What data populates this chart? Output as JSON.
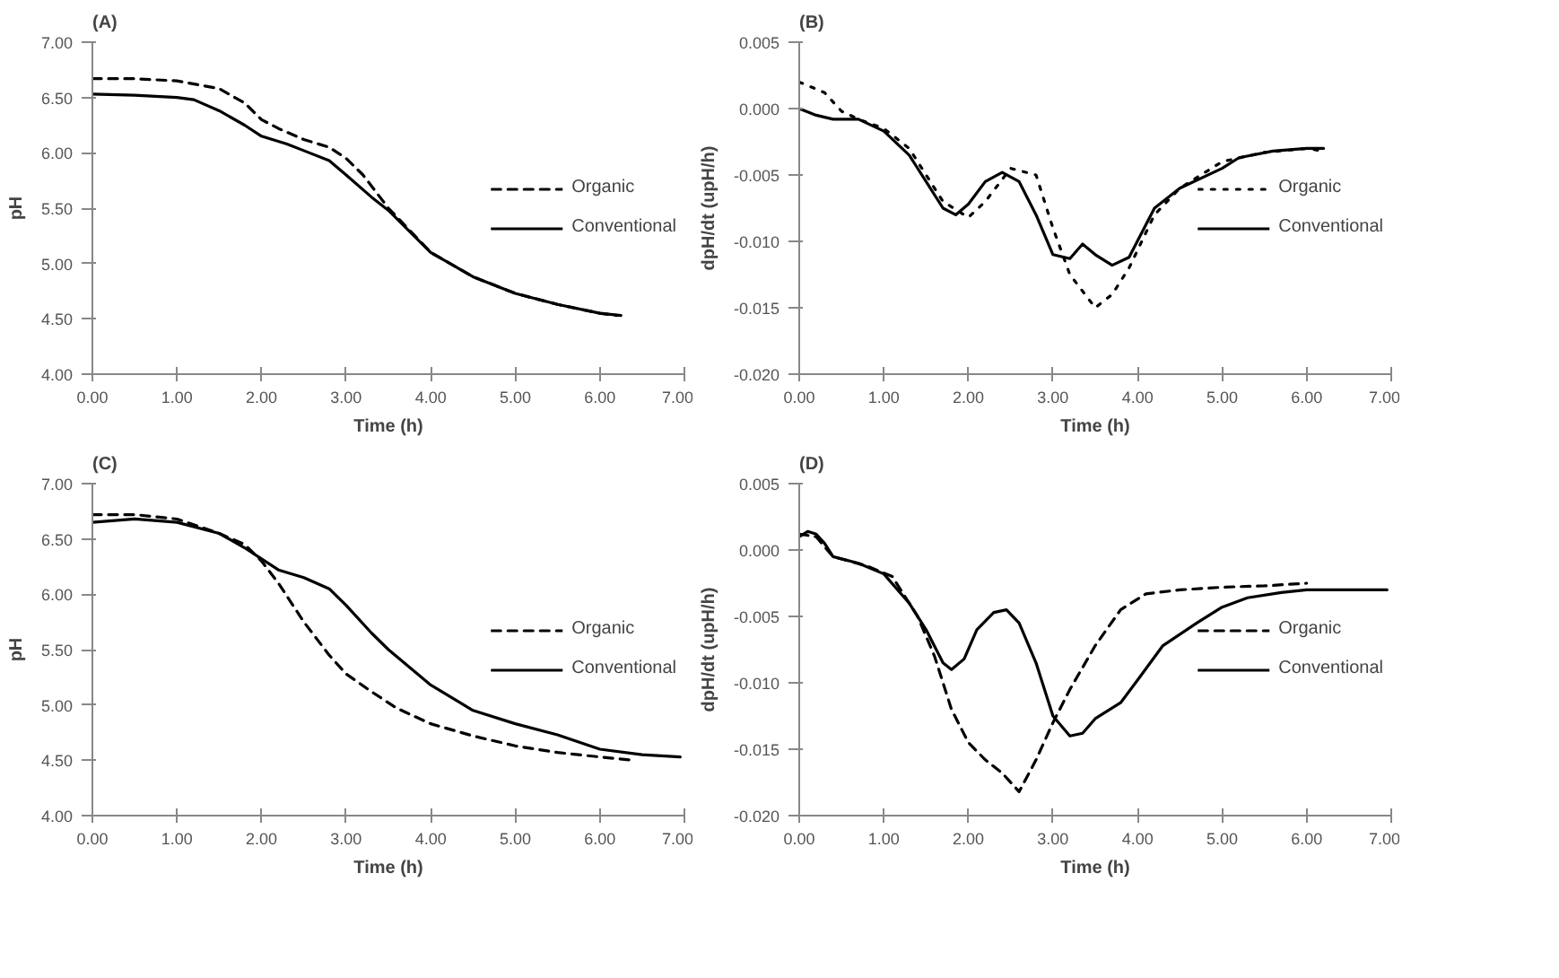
{
  "chart_data": [
    {
      "type": "line",
      "title": "(A)",
      "xlabel": "Time (h)",
      "ylabel": "pH",
      "legend": "right",
      "grid": false,
      "marker": "none",
      "xlim": [
        0,
        7
      ],
      "ylim": [
        4,
        7
      ],
      "xticks": [
        {
          "value": 0,
          "label": "0.00"
        },
        {
          "value": 1,
          "label": "1.00"
        },
        {
          "value": 2,
          "label": "2.00"
        },
        {
          "value": 3,
          "label": "3.00"
        },
        {
          "value": 4,
          "label": "4.00"
        },
        {
          "value": 5,
          "label": "5.00"
        },
        {
          "value": 6,
          "label": "6.00"
        },
        {
          "value": 7,
          "label": "7.00"
        }
      ],
      "yticks": [
        {
          "value": 4,
          "label": "4.00"
        },
        {
          "value": 4.5,
          "label": "4.50"
        },
        {
          "value": 5,
          "label": "5.00"
        },
        {
          "value": 5.5,
          "label": "5.50"
        },
        {
          "value": 6,
          "label": "6.00"
        },
        {
          "value": 6.5,
          "label": "6.50"
        },
        {
          "value": 7,
          "label": "7.00"
        }
      ],
      "series": [
        {
          "name": "Organic",
          "color": "#000000",
          "line_style": "dashed",
          "x": [
            0,
            0.5,
            1,
            1.5,
            1.8,
            2.0,
            2.2,
            2.5,
            2.8,
            3.0,
            3.2,
            3.5,
            4,
            4.5,
            5,
            5.5,
            6,
            6.2
          ],
          "values": [
            6.67,
            6.67,
            6.65,
            6.58,
            6.45,
            6.3,
            6.22,
            6.12,
            6.05,
            5.95,
            5.8,
            5.5,
            5.1,
            4.88,
            4.73,
            4.63,
            4.55,
            4.53
          ]
        },
        {
          "name": "Conventional",
          "color": "#000000",
          "line_style": "solid",
          "x": [
            0,
            0.5,
            1,
            1.2,
            1.5,
            1.8,
            2,
            2.3,
            2.5,
            2.8,
            3,
            3.3,
            3.5,
            4,
            4.5,
            5,
            5.5,
            6,
            6.25
          ],
          "values": [
            6.53,
            6.52,
            6.5,
            6.48,
            6.38,
            6.25,
            6.15,
            6.08,
            6.02,
            5.93,
            5.8,
            5.6,
            5.48,
            5.1,
            4.88,
            4.73,
            4.63,
            4.55,
            4.53
          ]
        }
      ]
    },
    {
      "type": "line",
      "title": "(B)",
      "xlabel": "Time (h)",
      "ylabel": "dpH/dt (upH/h)",
      "legend": "right",
      "grid": false,
      "marker": "none",
      "xlim": [
        0,
        7
      ],
      "ylim": [
        -0.02,
        0.005
      ],
      "xticks": [
        {
          "value": 0,
          "label": "0.00"
        },
        {
          "value": 1,
          "label": "1.00"
        },
        {
          "value": 2,
          "label": "2.00"
        },
        {
          "value": 3,
          "label": "3.00"
        },
        {
          "value": 4,
          "label": "4.00"
        },
        {
          "value": 5,
          "label": "5.00"
        },
        {
          "value": 6,
          "label": "6.00"
        },
        {
          "value": 7,
          "label": "7.00"
        }
      ],
      "yticks": [
        {
          "value": -0.02,
          "label": "-0.020"
        },
        {
          "value": -0.015,
          "label": "-0.015"
        },
        {
          "value": -0.01,
          "label": "-0.010"
        },
        {
          "value": -0.005,
          "label": "-0.005"
        },
        {
          "value": 0,
          "label": "0.000"
        },
        {
          "value": 0.005,
          "label": "0.005"
        }
      ],
      "series": [
        {
          "name": "Organic",
          "color": "#000000",
          "line_style": "dotted",
          "x": [
            0,
            0.3,
            0.5,
            0.7,
            1,
            1.3,
            1.5,
            1.7,
            2,
            2.2,
            2.5,
            2.8,
            3.0,
            3.2,
            3.5,
            3.7,
            3.9,
            4.2,
            4.5,
            5,
            5.5,
            6.0,
            6.2
          ],
          "values": [
            0.002,
            0.0012,
            -0.0002,
            -0.0008,
            -0.0015,
            -0.003,
            -0.005,
            -0.007,
            -0.0082,
            -0.007,
            -0.0045,
            -0.005,
            -0.009,
            -0.0125,
            -0.015,
            -0.014,
            -0.012,
            -0.008,
            -0.006,
            -0.004,
            -0.0033,
            -0.003,
            -0.0032
          ]
        },
        {
          "name": "Conventional",
          "color": "#000000",
          "line_style": "solid",
          "x": [
            0,
            0.2,
            0.4,
            0.7,
            1,
            1.3,
            1.5,
            1.7,
            1.85,
            2,
            2.2,
            2.4,
            2.6,
            2.8,
            3.0,
            3.2,
            3.35,
            3.5,
            3.7,
            3.9,
            4.2,
            4.5,
            5,
            5.2,
            5.6,
            6.0,
            6.2
          ],
          "values": [
            0,
            -0.0005,
            -0.0008,
            -0.0008,
            -0.0017,
            -0.0035,
            -0.0055,
            -0.0075,
            -0.008,
            -0.0072,
            -0.0055,
            -0.0048,
            -0.0055,
            -0.008,
            -0.011,
            -0.0113,
            -0.0102,
            -0.011,
            -0.0118,
            -0.0112,
            -0.0075,
            -0.006,
            -0.0045,
            -0.0037,
            -0.0032,
            -0.003,
            -0.003
          ]
        }
      ]
    },
    {
      "type": "line",
      "title": "(C)",
      "xlabel": "Time (h)",
      "ylabel": "pH",
      "legend": "right",
      "grid": false,
      "marker": "none",
      "xlim": [
        0,
        7
      ],
      "ylim": [
        4,
        7
      ],
      "xticks": [
        {
          "value": 0,
          "label": "0.00"
        },
        {
          "value": 1,
          "label": "1.00"
        },
        {
          "value": 2,
          "label": "2.00"
        },
        {
          "value": 3,
          "label": "3.00"
        },
        {
          "value": 4,
          "label": "4.00"
        },
        {
          "value": 5,
          "label": "5.00"
        },
        {
          "value": 6,
          "label": "6.00"
        },
        {
          "value": 7,
          "label": "7.00"
        }
      ],
      "yticks": [
        {
          "value": 4,
          "label": "4.00"
        },
        {
          "value": 4.5,
          "label": "4.50"
        },
        {
          "value": 5,
          "label": "5.00"
        },
        {
          "value": 5.5,
          "label": "5.50"
        },
        {
          "value": 6,
          "label": "6.00"
        },
        {
          "value": 6.5,
          "label": "6.50"
        },
        {
          "value": 7,
          "label": "7.00"
        }
      ],
      "series": [
        {
          "name": "Organic",
          "color": "#000000",
          "line_style": "dashed",
          "x": [
            0,
            0.5,
            1,
            1.5,
            1.8,
            2,
            2.2,
            2.5,
            2.8,
            3,
            3.3,
            3.6,
            4,
            4.5,
            5,
            5.5,
            6,
            6.4
          ],
          "values": [
            6.72,
            6.72,
            6.68,
            6.55,
            6.45,
            6.3,
            6.1,
            5.75,
            5.45,
            5.28,
            5.12,
            4.97,
            4.83,
            4.72,
            4.63,
            4.57,
            4.53,
            4.5
          ]
        },
        {
          "name": "Conventional",
          "color": "#000000",
          "line_style": "solid",
          "x": [
            0,
            0.5,
            1,
            1.5,
            1.8,
            2,
            2.2,
            2.5,
            2.8,
            3,
            3.3,
            3.5,
            4,
            4.5,
            5,
            5.5,
            6,
            6.5,
            6.95
          ],
          "values": [
            6.65,
            6.68,
            6.65,
            6.55,
            6.42,
            6.32,
            6.22,
            6.15,
            6.05,
            5.9,
            5.65,
            5.5,
            5.18,
            4.95,
            4.83,
            4.73,
            4.6,
            4.55,
            4.53
          ]
        }
      ]
    },
    {
      "type": "line",
      "title": "(D)",
      "xlabel": "Time (h)",
      "ylabel": "dpH/dt (upH/h)",
      "legend": "right",
      "grid": false,
      "marker": "none",
      "xlim": [
        0,
        7
      ],
      "ylim": [
        -0.02,
        0.005
      ],
      "xticks": [
        {
          "value": 0,
          "label": "0.00"
        },
        {
          "value": 1,
          "label": "1.00"
        },
        {
          "value": 2,
          "label": "2.00"
        },
        {
          "value": 3,
          "label": "3.00"
        },
        {
          "value": 4,
          "label": "4.00"
        },
        {
          "value": 5,
          "label": "5.00"
        },
        {
          "value": 6,
          "label": "6.00"
        },
        {
          "value": 7,
          "label": "7.00"
        }
      ],
      "yticks": [
        {
          "value": -0.02,
          "label": "-0.020"
        },
        {
          "value": -0.015,
          "label": "-0.015"
        },
        {
          "value": -0.01,
          "label": "-0.010"
        },
        {
          "value": -0.005,
          "label": "-0.005"
        },
        {
          "value": 0,
          "label": "0.000"
        },
        {
          "value": 0.005,
          "label": "0.005"
        }
      ],
      "series": [
        {
          "name": "Organic",
          "color": "#000000",
          "line_style": "dashed",
          "x": [
            0,
            0.2,
            0.4,
            0.8,
            1.1,
            1.4,
            1.6,
            1.8,
            2.0,
            2.2,
            2.4,
            2.6,
            2.8,
            3.0,
            3.2,
            3.5,
            3.8,
            4.1,
            4.5,
            5,
            5.5,
            6
          ],
          "values": [
            0.0012,
            0.001,
            -0.0005,
            -0.0012,
            -0.002,
            -0.005,
            -0.008,
            -0.012,
            -0.0145,
            -0.0158,
            -0.0168,
            -0.0182,
            -0.0158,
            -0.013,
            -0.0105,
            -0.0072,
            -0.0045,
            -0.0033,
            -0.003,
            -0.0028,
            -0.0027,
            -0.0025
          ]
        },
        {
          "name": "Conventional",
          "color": "#000000",
          "line_style": "solid",
          "x": [
            0,
            0.1,
            0.2,
            0.3,
            0.4,
            0.7,
            1,
            1.3,
            1.5,
            1.7,
            1.8,
            1.95,
            2.1,
            2.3,
            2.45,
            2.6,
            2.8,
            3.0,
            3.2,
            3.35,
            3.5,
            3.8,
            4.0,
            4.3,
            4.7,
            5,
            5.3,
            5.7,
            6,
            6.5,
            6.95
          ],
          "values": [
            0.001,
            0.0014,
            0.0012,
            0.0005,
            -0.0005,
            -0.001,
            -0.0018,
            -0.004,
            -0.006,
            -0.0085,
            -0.009,
            -0.0082,
            -0.006,
            -0.0047,
            -0.0045,
            -0.0055,
            -0.0085,
            -0.0125,
            -0.014,
            -0.0138,
            -0.0127,
            -0.0115,
            -0.0098,
            -0.0072,
            -0.0055,
            -0.0043,
            -0.0036,
            -0.0032,
            -0.003,
            -0.003,
            -0.003
          ]
        }
      ]
    }
  ]
}
